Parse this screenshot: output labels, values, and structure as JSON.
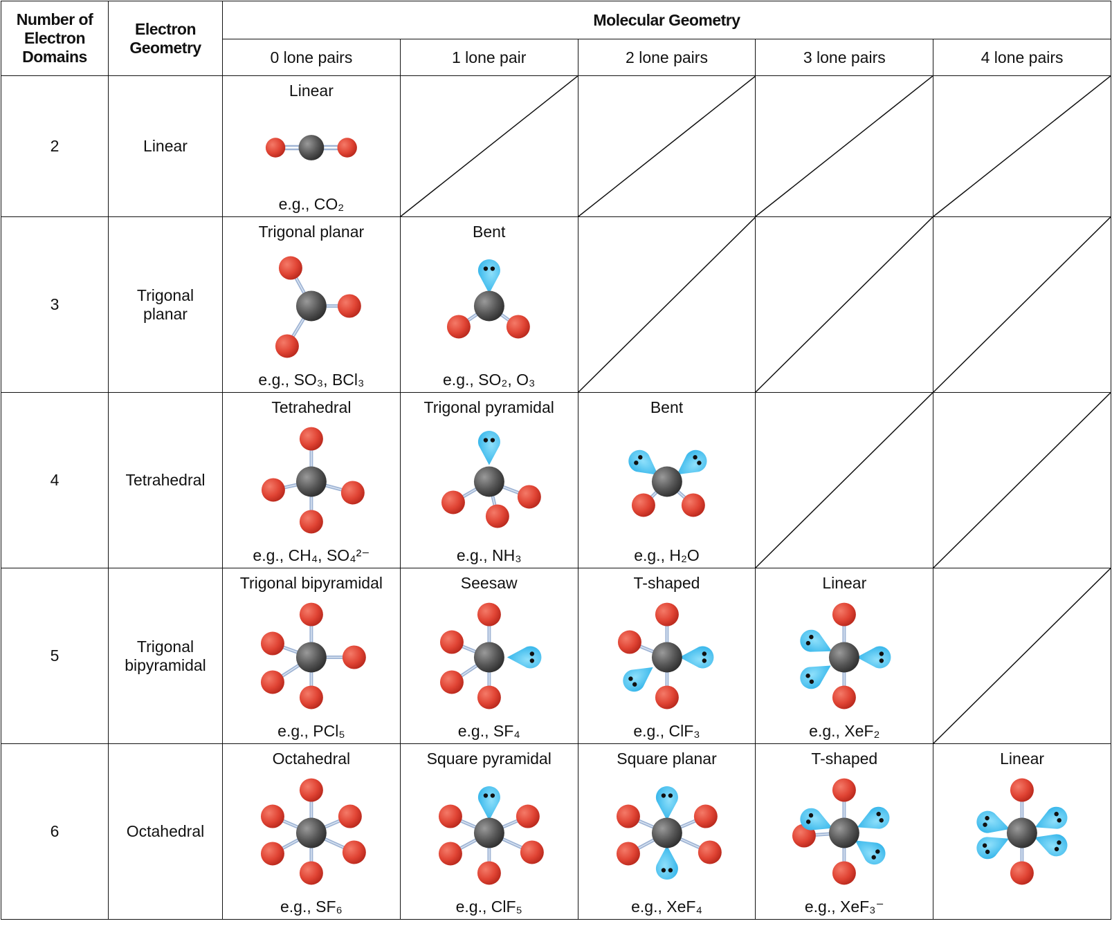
{
  "header": {
    "domains": "Number of Electron Domains",
    "electron_geometry": "Electron Geometry",
    "molecular_geometry": "Molecular Geometry",
    "lone_pairs": [
      "0 lone pairs",
      "1 lone pair",
      "2 lone pairs",
      "3 lone pairs",
      "4 lone pairs"
    ]
  },
  "rows": [
    {
      "domains": "2",
      "electron_geometry": "Linear",
      "cells": [
        {
          "name": "Linear",
          "example": "e.g., CO₂"
        },
        null,
        null,
        null,
        null
      ]
    },
    {
      "domains": "3",
      "electron_geometry": "Trigonal planar",
      "cells": [
        {
          "name": "Trigonal planar",
          "example": "e.g., SO₃, BCl₃"
        },
        {
          "name": "Bent",
          "example": "e.g., SO₂, O₃"
        },
        null,
        null,
        null
      ]
    },
    {
      "domains": "4",
      "electron_geometry": "Tetrahedral",
      "cells": [
        {
          "name": "Tetrahedral",
          "example": "e.g., CH₄, SO₄²⁻"
        },
        {
          "name": "Trigonal pyramidal",
          "example": "e.g., NH₃"
        },
        {
          "name": "Bent",
          "example": "e.g., H₂O"
        },
        null,
        null
      ]
    },
    {
      "domains": "5",
      "electron_geometry": "Trigonal bipyramidal",
      "cells": [
        {
          "name": "Trigonal bipyramidal",
          "example": "e.g., PCl₅"
        },
        {
          "name": "Seesaw",
          "example": "e.g., SF₄"
        },
        {
          "name": "T-shaped",
          "example": "e.g., ClF₃"
        },
        {
          "name": "Linear",
          "example": "e.g., XeF₂"
        },
        null
      ]
    },
    {
      "domains": "6",
      "electron_geometry": "Octahedral",
      "cells": [
        {
          "name": "Octahedral",
          "example": "e.g., SF₆"
        },
        {
          "name": "Square pyramidal",
          "example": "e.g., ClF₅"
        },
        {
          "name": "Square planar",
          "example": "e.g., XeF₄"
        },
        {
          "name": "T-shaped",
          "example": "e.g., XeF₃⁻"
        },
        {
          "name": "Linear",
          "example": null
        }
      ]
    }
  ]
}
